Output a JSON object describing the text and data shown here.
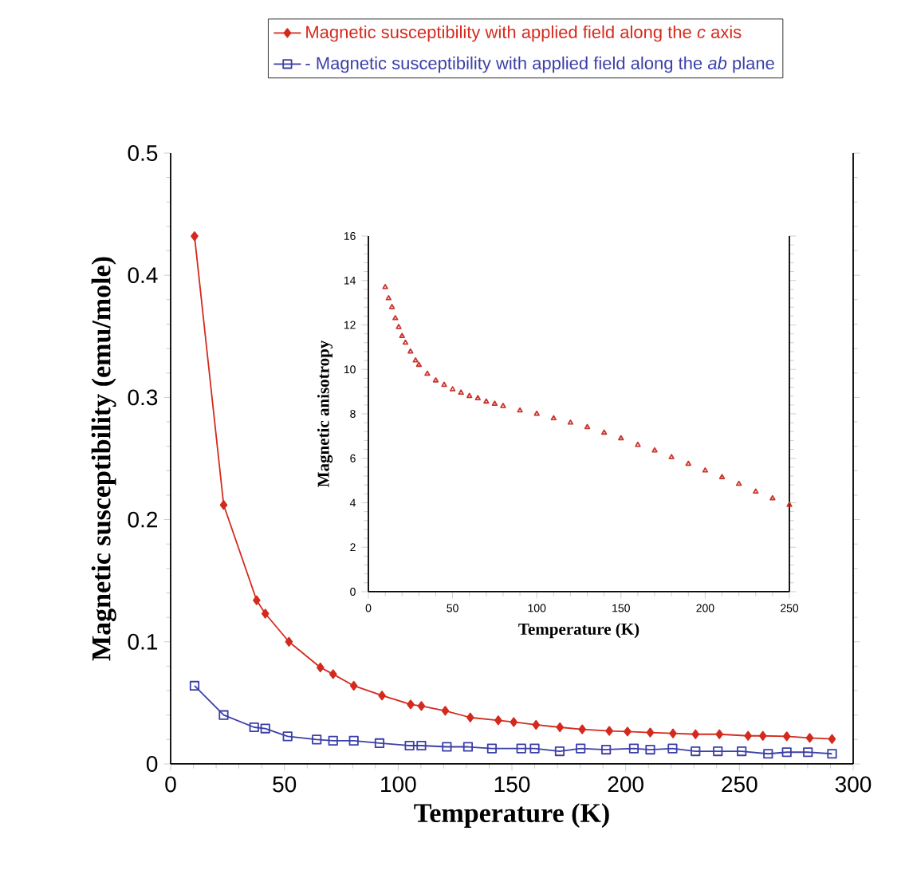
{
  "chart_data": [
    {
      "type": "line",
      "xlabel": "Temperature (K)",
      "ylabel": "Magnetic susceptibility (emu/mole)",
      "xlim": [
        0,
        300
      ],
      "ylim": [
        0,
        0.5
      ],
      "xticks": [
        0,
        50,
        100,
        150,
        200,
        250,
        300
      ],
      "yticks": [
        0,
        0.1,
        0.2,
        0.3,
        0.4,
        0.5
      ],
      "legend": "top",
      "series": [
        {
          "name": "Magnetic susceptibility with applied field along the *c* axis",
          "color": "#d42a1e",
          "marker": "diamond",
          "x": [
            10.5,
            23.3,
            37.8,
            41.6,
            52,
            65.8,
            71.4,
            80.5,
            92.9,
            105.5,
            110.2,
            120.7,
            131.7,
            144,
            150.8,
            160.6,
            171.1,
            180.9,
            192.8,
            200.8,
            210.8,
            220.8,
            230.7,
            241.2,
            253.8,
            260.3,
            270.8,
            280.9,
            290.7
          ],
          "values": [
            0.432,
            0.212,
            0.134,
            0.123,
            0.1,
            0.079,
            0.0735,
            0.064,
            0.056,
            0.0487,
            0.0474,
            0.0435,
            0.038,
            0.0357,
            0.0343,
            0.032,
            0.03,
            0.0283,
            0.027,
            0.0265,
            0.0257,
            0.025,
            0.0243,
            0.0243,
            0.023,
            0.023,
            0.0226,
            0.0213,
            0.0204
          ]
        },
        {
          "name": "- Magnetic susceptibility with applied field along the *ab* plane",
          "color": "#3b3fa8",
          "marker": "square",
          "x": [
            10.5,
            23.3,
            36.7,
            41.6,
            51.4,
            64.2,
            71.4,
            80.5,
            91.8,
            105,
            110.2,
            121.4,
            130.7,
            141.2,
            154.1,
            160,
            171,
            180.2,
            191.4,
            203.6,
            210.8,
            220.6,
            230.7,
            240.5,
            251,
            262.6,
            270.8,
            280.1,
            290.7
          ],
          "values": [
            0.064,
            0.04,
            0.03,
            0.029,
            0.0226,
            0.02,
            0.019,
            0.019,
            0.017,
            0.015,
            0.015,
            0.014,
            0.014,
            0.0126,
            0.0126,
            0.0126,
            0.0104,
            0.0126,
            0.0117,
            0.0126,
            0.0117,
            0.0126,
            0.0104,
            0.0104,
            0.0104,
            0.0083,
            0.0096,
            0.0096,
            0.0083
          ]
        }
      ]
    },
    {
      "type": "scatter",
      "xlabel": "Temperature (K)",
      "ylabel": "Magnetic anisotropy",
      "xlim": [
        0,
        250
      ],
      "ylim": [
        0,
        16
      ],
      "xticks": [
        0,
        50,
        100,
        150,
        200,
        250
      ],
      "yticks": [
        0,
        2,
        4,
        6,
        8,
        10,
        12,
        14,
        16
      ],
      "marker": "triangle",
      "series": [
        {
          "color": "#c8372d",
          "x": [
            10,
            12,
            14,
            16,
            18,
            20,
            22,
            25,
            28,
            30,
            35,
            40,
            45,
            50,
            55,
            60,
            65,
            70,
            75,
            80,
            90,
            100,
            110,
            120,
            130,
            140,
            150,
            160,
            170,
            180,
            190,
            200,
            210,
            220,
            230,
            240,
            250
          ],
          "values": [
            13.7,
            13.2,
            12.8,
            12.3,
            11.9,
            11.5,
            11.2,
            10.8,
            10.4,
            10.2,
            9.8,
            9.5,
            9.3,
            9.1,
            8.95,
            8.8,
            8.7,
            8.55,
            8.45,
            8.35,
            8.15,
            8.0,
            7.8,
            7.6,
            7.4,
            7.15,
            6.9,
            6.6,
            6.35,
            6.05,
            5.75,
            5.45,
            5.15,
            4.85,
            4.5,
            4.2,
            3.9
          ]
        }
      ]
    }
  ]
}
